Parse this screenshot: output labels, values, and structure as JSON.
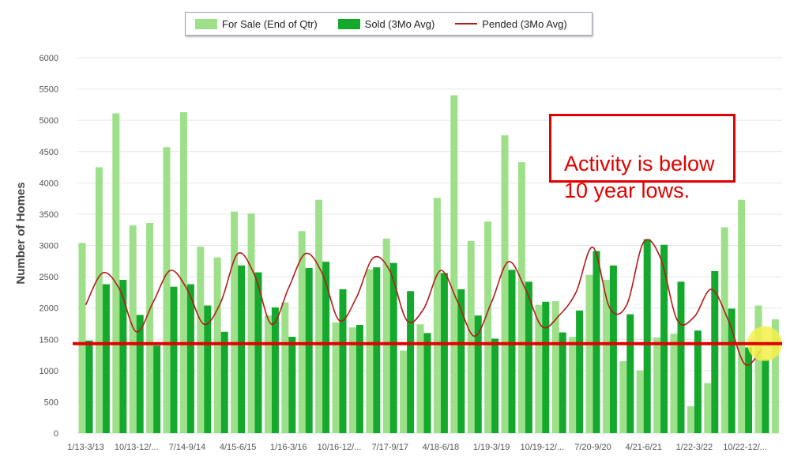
{
  "colors": {
    "for_sale": "#9ee08a",
    "sold": "#14a82c",
    "pended": "#b31b1b",
    "threshold": "#e00000",
    "highlight": "#f5f04a",
    "grid": "#e6e6e6"
  },
  "callout": {
    "text": "Activity is below\n10 year lows."
  },
  "chart_data": {
    "type": "bar",
    "ylabel": "Number of Homes",
    "ylim": [
      0,
      6000
    ],
    "yticks": [
      0,
      500,
      1000,
      1500,
      2000,
      2500,
      3000,
      3500,
      4000,
      4500,
      5000,
      5500,
      6000
    ],
    "grid": true,
    "legend_position": "top",
    "xtick_labels": [
      "1/13-3/13",
      "10/13-12/...",
      "7/14-9/14",
      "4/15-6/15",
      "1/16-3/16",
      "10/16-12/...",
      "7/17-9/17",
      "4/18-6/18",
      "1/19-3/19",
      "10/19-12/...",
      "7/20-9/20",
      "4/21-6/21",
      "1/22-3/22",
      "10/22-12/..."
    ],
    "series": [
      {
        "name": "For Sale (End of Qtr)",
        "kind": "bar",
        "values": [
          3040,
          4250,
          5110,
          3320,
          3360,
          4570,
          5130,
          2980,
          2810,
          3540,
          3510,
          1880,
          2090,
          3230,
          3730,
          1770,
          1690,
          2620,
          3110,
          1320,
          1740,
          3760,
          5400,
          3070,
          3380,
          4760,
          4330,
          2050,
          2110,
          1540,
          2530,
          2450,
          1150,
          1000,
          1530,
          1590,
          430,
          800,
          3290,
          3730,
          2040,
          1820
        ]
      },
      {
        "name": "Sold (3Mo Avg)",
        "kind": "bar",
        "values": [
          1480,
          2380,
          2450,
          1890,
          1400,
          2340,
          2380,
          2040,
          1620,
          2680,
          2570,
          2010,
          1540,
          2640,
          2740,
          2300,
          1730,
          2650,
          2720,
          2270,
          1600,
          2560,
          2300,
          1880,
          1510,
          2610,
          2420,
          2100,
          1610,
          1960,
          2910,
          2680,
          1900,
          3100,
          3010,
          2420,
          1640,
          2590,
          1990,
          1370,
          1180,
          0
        ]
      },
      {
        "name": "Pended (3Mo Avg)",
        "kind": "line",
        "values": [
          2050,
          2560,
          2300,
          1620,
          2100,
          2600,
          2300,
          1740,
          2100,
          2870,
          2520,
          1740,
          2320,
          2870,
          2550,
          1800,
          2160,
          2800,
          2590,
          1800,
          1990,
          2600,
          2100,
          1550,
          2090,
          2740,
          2310,
          1700,
          1880,
          2250,
          2970,
          2000,
          2050,
          3050,
          2800,
          1800,
          1860,
          2300,
          1810,
          1100,
          1350,
          null
        ]
      },
      {
        "name": "threshold",
        "kind": "hline",
        "values": [
          1430
        ]
      }
    ]
  }
}
